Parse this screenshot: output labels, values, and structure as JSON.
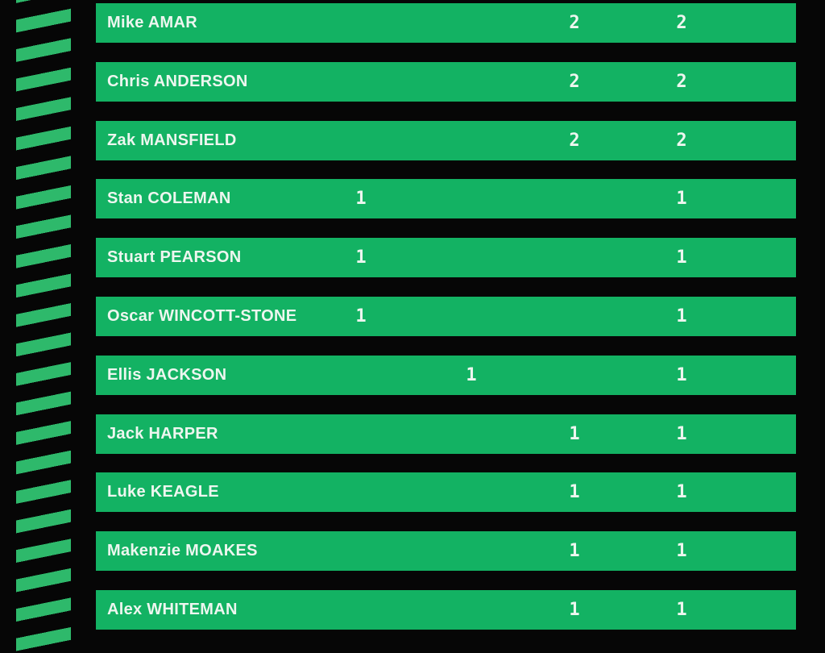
{
  "theme": {
    "background": "#060606",
    "row_color": "#13b263",
    "stripe_color": "#2eb96b",
    "text_color": "#edf6ef"
  },
  "chart_data": {
    "type": "table",
    "description": "Leaderboard of player names with scores in four numeric columns; last column is the total.",
    "rows": [
      {
        "player": "Mike AMAR",
        "values": [
          "",
          "",
          "2",
          "2"
        ]
      },
      {
        "player": "Chris ANDERSON",
        "values": [
          "",
          "",
          "2",
          "2"
        ]
      },
      {
        "player": "Zak MANSFIELD",
        "values": [
          "",
          "",
          "2",
          "2"
        ]
      },
      {
        "player": "Stan COLEMAN",
        "values": [
          "1",
          "",
          "",
          "1"
        ]
      },
      {
        "player": "Stuart PEARSON",
        "values": [
          "1",
          "",
          "",
          "1"
        ]
      },
      {
        "player": "Oscar WINCOTT-STONE",
        "values": [
          "1",
          "",
          "",
          "1"
        ]
      },
      {
        "player": "Ellis JACKSON",
        "values": [
          "",
          "1",
          "",
          "1"
        ]
      },
      {
        "player": "Jack HARPER",
        "values": [
          "",
          "",
          "1",
          "1"
        ]
      },
      {
        "player": "Luke KEAGLE",
        "values": [
          "",
          "",
          "1",
          "1"
        ]
      },
      {
        "player": "Makenzie MOAKES",
        "values": [
          "",
          "",
          "1",
          "1"
        ]
      },
      {
        "player": "Alex WHITEMAN",
        "values": [
          "",
          "",
          "1",
          "1"
        ]
      }
    ]
  }
}
